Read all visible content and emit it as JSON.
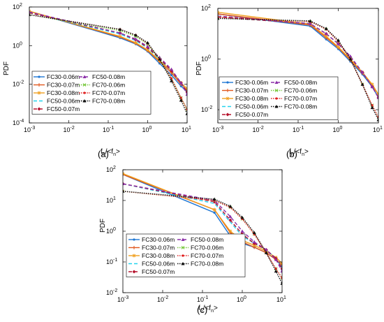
{
  "colors": {
    "FC30-0.06m": "#1f77d4",
    "FC30-0.07m": "#e0561c",
    "FC30-0.08m": "#f0a020",
    "FC50-0.06m": "#22d3ee",
    "FC50-0.07m": "#b5122d",
    "FC50-0.08m": "#8b2fa8",
    "FC70-0.06m": "#77c83c",
    "FC70-0.07m": "#e02020",
    "FC70-0.08m": "#111111"
  },
  "chart_data": [
    {
      "type": "line",
      "panel_label": "(a)",
      "xlabel": "f_n/<f_n>",
      "ylabel": "PDF",
      "xscale": "log",
      "yscale": "log",
      "xlim": [
        0.001,
        10
      ],
      "ylim": [
        0.0001,
        100
      ],
      "xticks": [
        "10^-3",
        "10^-2",
        "10^-1",
        "10^0",
        "10^1"
      ],
      "yticks": [
        "10^-4",
        "10^-2",
        "10^0",
        "10^2"
      ],
      "legend": [
        "FC30-0.06m",
        "FC30-0.07m",
        "FC30-0.08m",
        "FC50-0.06m",
        "FC50-0.07m",
        "FC50-0.08m",
        "FC70-0.06m",
        "FC70-0.07m",
        "FC70-0.08m"
      ],
      "legend_position": "lower-left",
      "series": [
        {
          "name": "FC30-0.06m",
          "x": [
            0.001,
            0.2,
            0.5,
            1,
            2,
            4,
            7,
            10
          ],
          "y": [
            60,
            2.5,
            1.2,
            0.5,
            0.12,
            0.03,
            0.008,
            0.004
          ]
        },
        {
          "name": "FC30-0.07m",
          "x": [
            0.001,
            0.2,
            0.5,
            1,
            2,
            4,
            7,
            10
          ],
          "y": [
            60,
            2.8,
            1.3,
            0.55,
            0.15,
            0.04,
            0.01,
            0.005
          ]
        },
        {
          "name": "FC30-0.08m",
          "x": [
            0.001,
            0.2,
            0.5,
            1,
            2,
            4,
            7,
            10
          ],
          "y": [
            60,
            3,
            1.4,
            0.6,
            0.17,
            0.05,
            0.012,
            0.006
          ]
        },
        {
          "name": "FC50-0.06m",
          "x": [
            0.001,
            0.2,
            0.5,
            1,
            2,
            4,
            7,
            10
          ],
          "y": [
            50,
            4,
            1.8,
            0.75,
            0.2,
            0.05,
            0.012,
            0.004
          ]
        },
        {
          "name": "FC50-0.07m",
          "x": [
            0.001,
            0.2,
            0.5,
            1,
            2,
            4,
            7,
            10
          ],
          "y": [
            50,
            4.5,
            2,
            0.8,
            0.22,
            0.05,
            0.012,
            0.004
          ]
        },
        {
          "name": "FC50-0.08m",
          "x": [
            0.001,
            0.2,
            0.5,
            1,
            2,
            4,
            7,
            10
          ],
          "y": [
            55,
            4.5,
            2.2,
            0.9,
            0.25,
            0.06,
            0.012,
            0.003
          ]
        },
        {
          "name": "FC70-0.06m",
          "x": [
            0.001,
            0.2,
            0.5,
            1,
            2,
            4,
            7,
            10
          ],
          "y": [
            40,
            6,
            3,
            1.2,
            0.2,
            0.02,
            0.002,
            0.0005
          ]
        },
        {
          "name": "FC70-0.07m",
          "x": [
            0.001,
            0.2,
            0.5,
            1,
            2,
            4,
            7,
            10
          ],
          "y": [
            40,
            7,
            3.5,
            1.3,
            0.2,
            0.02,
            0.002,
            0.0005
          ]
        },
        {
          "name": "FC70-0.08m",
          "x": [
            0.001,
            0.2,
            0.5,
            1,
            2,
            4,
            7,
            10
          ],
          "y": [
            40,
            7,
            3.5,
            1.4,
            0.2,
            0.015,
            0.0015,
            0.0003
          ]
        }
      ]
    },
    {
      "type": "line",
      "panel_label": "(b)",
      "xlabel": "f_n/<f_n>",
      "ylabel": "PDF",
      "xscale": "log",
      "yscale": "log",
      "xlim": [
        0.001,
        10
      ],
      "ylim": [
        0.003,
        100
      ],
      "xticks": [
        "10^-3",
        "10^-2",
        "10^-1",
        "10^0",
        "10^1"
      ],
      "yticks": [
        "10^-2",
        "10^0",
        "10^2"
      ],
      "legend": [
        "FC30-0.06m",
        "FC30-0.07m",
        "FC30-0.08m",
        "FC50-0.06m",
        "FC50-0.07m",
        "FC50-0.08m",
        "FC70-0.06m",
        "FC70-0.07m",
        "FC70-0.08m"
      ],
      "legend_position": "lower-left",
      "series": [
        {
          "name": "FC30-0.06m",
          "x": [
            0.001,
            0.2,
            0.5,
            1,
            2,
            4,
            7,
            10
          ],
          "y": [
            60,
            20,
            6,
            2.5,
            0.8,
            0.25,
            0.08,
            0.03
          ]
        },
        {
          "name": "FC30-0.07m",
          "x": [
            0.001,
            0.2,
            0.5,
            1,
            2,
            4,
            7,
            10
          ],
          "y": [
            60,
            22,
            7,
            2.8,
            0.9,
            0.28,
            0.09,
            0.04
          ]
        },
        {
          "name": "FC30-0.08m",
          "x": [
            0.001,
            0.2,
            0.5,
            1,
            2,
            4,
            7,
            10
          ],
          "y": [
            70,
            24,
            8,
            3,
            1,
            0.3,
            0.1,
            0.04
          ]
        },
        {
          "name": "FC50-0.06m",
          "x": [
            0.001,
            0.2,
            0.5,
            1,
            2,
            4,
            7,
            10
          ],
          "y": [
            45,
            25,
            10,
            4,
            1.2,
            0.3,
            0.08,
            0.03
          ]
        },
        {
          "name": "FC50-0.07m",
          "x": [
            0.001,
            0.2,
            0.5,
            1,
            2,
            4,
            7,
            10
          ],
          "y": [
            45,
            25,
            10,
            4,
            1.2,
            0.3,
            0.08,
            0.03
          ]
        },
        {
          "name": "FC50-0.08m",
          "x": [
            0.001,
            0.2,
            0.5,
            1,
            2,
            4,
            7,
            10
          ],
          "y": [
            50,
            25,
            10,
            4,
            1.3,
            0.3,
            0.08,
            0.03
          ]
        },
        {
          "name": "FC70-0.06m",
          "x": [
            0.001,
            0.2,
            0.5,
            1,
            2,
            4,
            7,
            10
          ],
          "y": [
            45,
            30,
            15,
            5,
            1,
            0.1,
            0.015,
            0.005
          ]
        },
        {
          "name": "FC70-0.07m",
          "x": [
            0.001,
            0.2,
            0.5,
            1,
            2,
            4,
            7,
            10
          ],
          "y": [
            45,
            30,
            15,
            5,
            1,
            0.1,
            0.015,
            0.005
          ]
        },
        {
          "name": "FC70-0.08m",
          "x": [
            0.001,
            0.2,
            0.5,
            1,
            2,
            4,
            7,
            10
          ],
          "y": [
            40,
            32,
            16,
            5.5,
            1,
            0.1,
            0.012,
            0.004
          ]
        }
      ]
    },
    {
      "type": "line",
      "panel_label": "(c)",
      "xlabel": "f_n/<f_n>",
      "ylabel": "PDF",
      "xscale": "log",
      "yscale": "log",
      "xlim": [
        0.001,
        10
      ],
      "ylim": [
        0.01,
        100
      ],
      "xticks": [
        "10^-3",
        "10^-2",
        "10^-1",
        "10^0",
        "10^1"
      ],
      "yticks": [
        "10^-2",
        "10^-1",
        "10^0",
        "10^1",
        "10^2"
      ],
      "legend": [
        "FC30-0.06m",
        "FC30-0.07m",
        "FC30-0.08m",
        "FC50-0.06m",
        "FC50-0.07m",
        "FC50-0.08m",
        "FC70-0.06m",
        "FC70-0.07m",
        "FC70-0.08m"
      ],
      "legend_position": "lower-left",
      "series": [
        {
          "name": "FC30-0.06m",
          "x": [
            0.001,
            0.2,
            0.5,
            1,
            2,
            4,
            7,
            10
          ],
          "y": [
            70,
            4,
            0.7,
            0.4,
            0.3,
            0.2,
            0.12,
            0.07
          ]
        },
        {
          "name": "FC30-0.07m",
          "x": [
            0.001,
            0.2,
            0.5,
            1,
            2,
            4,
            7,
            10
          ],
          "y": [
            70,
            5,
            0.9,
            0.45,
            0.3,
            0.2,
            0.12,
            0.08
          ]
        },
        {
          "name": "FC30-0.08m",
          "x": [
            0.001,
            0.2,
            0.5,
            1,
            2,
            4,
            7,
            10
          ],
          "y": [
            75,
            5,
            1,
            0.5,
            0.35,
            0.22,
            0.14,
            0.09
          ]
        },
        {
          "name": "FC50-0.06m",
          "x": [
            0.001,
            0.2,
            0.5,
            1,
            2,
            4,
            7,
            10
          ],
          "y": [
            35,
            8,
            2,
            0.7,
            0.4,
            0.25,
            0.13,
            0.06
          ]
        },
        {
          "name": "FC50-0.07m",
          "x": [
            0.001,
            0.2,
            0.5,
            1,
            2,
            4,
            7,
            10
          ],
          "y": [
            35,
            9,
            2.3,
            0.8,
            0.4,
            0.25,
            0.13,
            0.06
          ]
        },
        {
          "name": "FC50-0.08m",
          "x": [
            0.001,
            0.2,
            0.5,
            1,
            2,
            4,
            7,
            10
          ],
          "y": [
            35,
            10,
            3,
            1,
            0.45,
            0.25,
            0.12,
            0.05
          ]
        },
        {
          "name": "FC70-0.06m",
          "x": [
            0.001,
            0.2,
            0.5,
            1,
            2,
            4,
            7,
            10
          ],
          "y": [
            20,
            10,
            6,
            2.5,
            0.8,
            0.2,
            0.06,
            0.03
          ]
        },
        {
          "name": "FC70-0.07m",
          "x": [
            0.001,
            0.2,
            0.5,
            1,
            2,
            4,
            7,
            10
          ],
          "y": [
            20,
            10,
            6,
            2.5,
            0.8,
            0.2,
            0.06,
            0.03
          ]
        },
        {
          "name": "FC70-0.08m",
          "x": [
            0.001,
            0.2,
            0.5,
            1,
            2,
            4,
            7,
            10
          ],
          "y": [
            20,
            11,
            6.5,
            2.8,
            0.9,
            0.2,
            0.05,
            0.02
          ]
        }
      ]
    }
  ]
}
